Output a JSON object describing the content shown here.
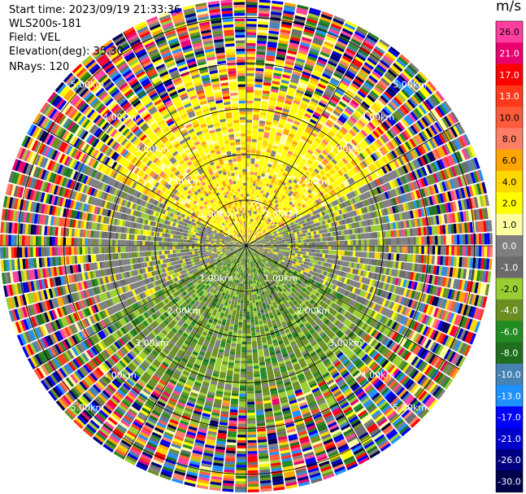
{
  "info": {
    "start_time": "Start time: 2023/09/19 21:33:36",
    "instrument": "WLS200s-181",
    "field": "Field: VEL",
    "elevation": "Elevation(deg): 35.30",
    "nrays": "NRays: 120"
  },
  "colorbar": {
    "unit": "m/s",
    "ticks": [
      "26.0",
      "21.0",
      "17.0",
      "13.0",
      "10.0",
      "8.0",
      "6.0",
      "4.0",
      "2.0",
      "1.0",
      "0.0",
      "-1.0",
      "-2.0",
      "-4.0",
      "-6.0",
      "-8.0",
      "-10.0",
      "-13.0",
      "-17.0",
      "-21.0",
      "-26.0",
      "-30.0"
    ],
    "colors": [
      "#ff3f9f",
      "#e8006e",
      "#ff0000",
      "#ff3a1a",
      "#ff5a3c",
      "#ff7f66",
      "#ffa500",
      "#ffd700",
      "#ffff00",
      "#ffffa0",
      "#7f7f7f",
      "#6b6b6b",
      "#9acd32",
      "#6b8e23",
      "#228b22",
      "#1e6e1e",
      "#4682b4",
      "#1e90ff",
      "#0000ff",
      "#0000cd",
      "#000080",
      "#00004a"
    ]
  },
  "chart_data": {
    "type": "heatmap",
    "projection": "polar PPI",
    "field": "VEL",
    "units": "m/s",
    "nrays": 120,
    "elevation_deg": 35.3,
    "range_rings_km": [
      1.0,
      2.0,
      3.0,
      4.0,
      5.0
    ],
    "range_ring_labels": [
      "1.00km",
      "2.00km",
      "3.00km",
      "4.00km",
      "5.00km"
    ],
    "spokes_deg": [
      0,
      30,
      60,
      90,
      120,
      150,
      180,
      210,
      240,
      270,
      300,
      330
    ],
    "value_range": [
      -30.0,
      26.0
    ],
    "pattern": {
      "north_sector_inner": "2.0 to 8.0 (yellow/orange)",
      "south_sector_inner": "-1.0 to -6.0 (green)",
      "east_west_inner": "0.0 to -1.0 (gray)",
      "outer_ranges": "noise, full range of values"
    }
  }
}
